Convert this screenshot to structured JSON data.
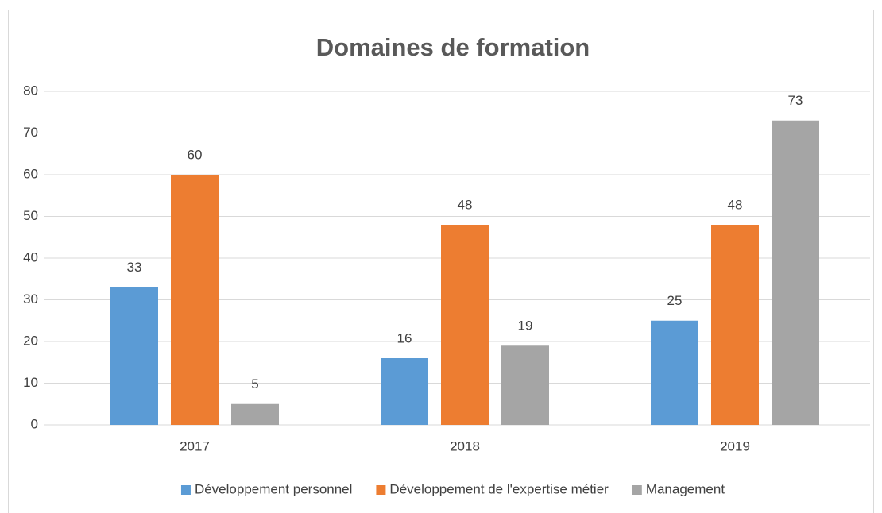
{
  "chart_data": {
    "type": "bar",
    "title": "Domaines de formation",
    "categories": [
      "2017",
      "2018",
      "2019"
    ],
    "series": [
      {
        "name": "Développement personnel",
        "color": "#5b9bd5",
        "values": [
          33,
          16,
          25
        ]
      },
      {
        "name": "Développement de l'expertise métier",
        "color": "#ed7d31",
        "values": [
          60,
          48,
          48
        ]
      },
      {
        "name": "Management",
        "color": "#a5a5a5",
        "values": [
          5,
          19,
          73
        ]
      }
    ],
    "ylim": [
      0,
      80
    ],
    "yticks": [
      0,
      10,
      20,
      30,
      40,
      50,
      60,
      70,
      80
    ],
    "grid": true,
    "legend": "bottom"
  }
}
